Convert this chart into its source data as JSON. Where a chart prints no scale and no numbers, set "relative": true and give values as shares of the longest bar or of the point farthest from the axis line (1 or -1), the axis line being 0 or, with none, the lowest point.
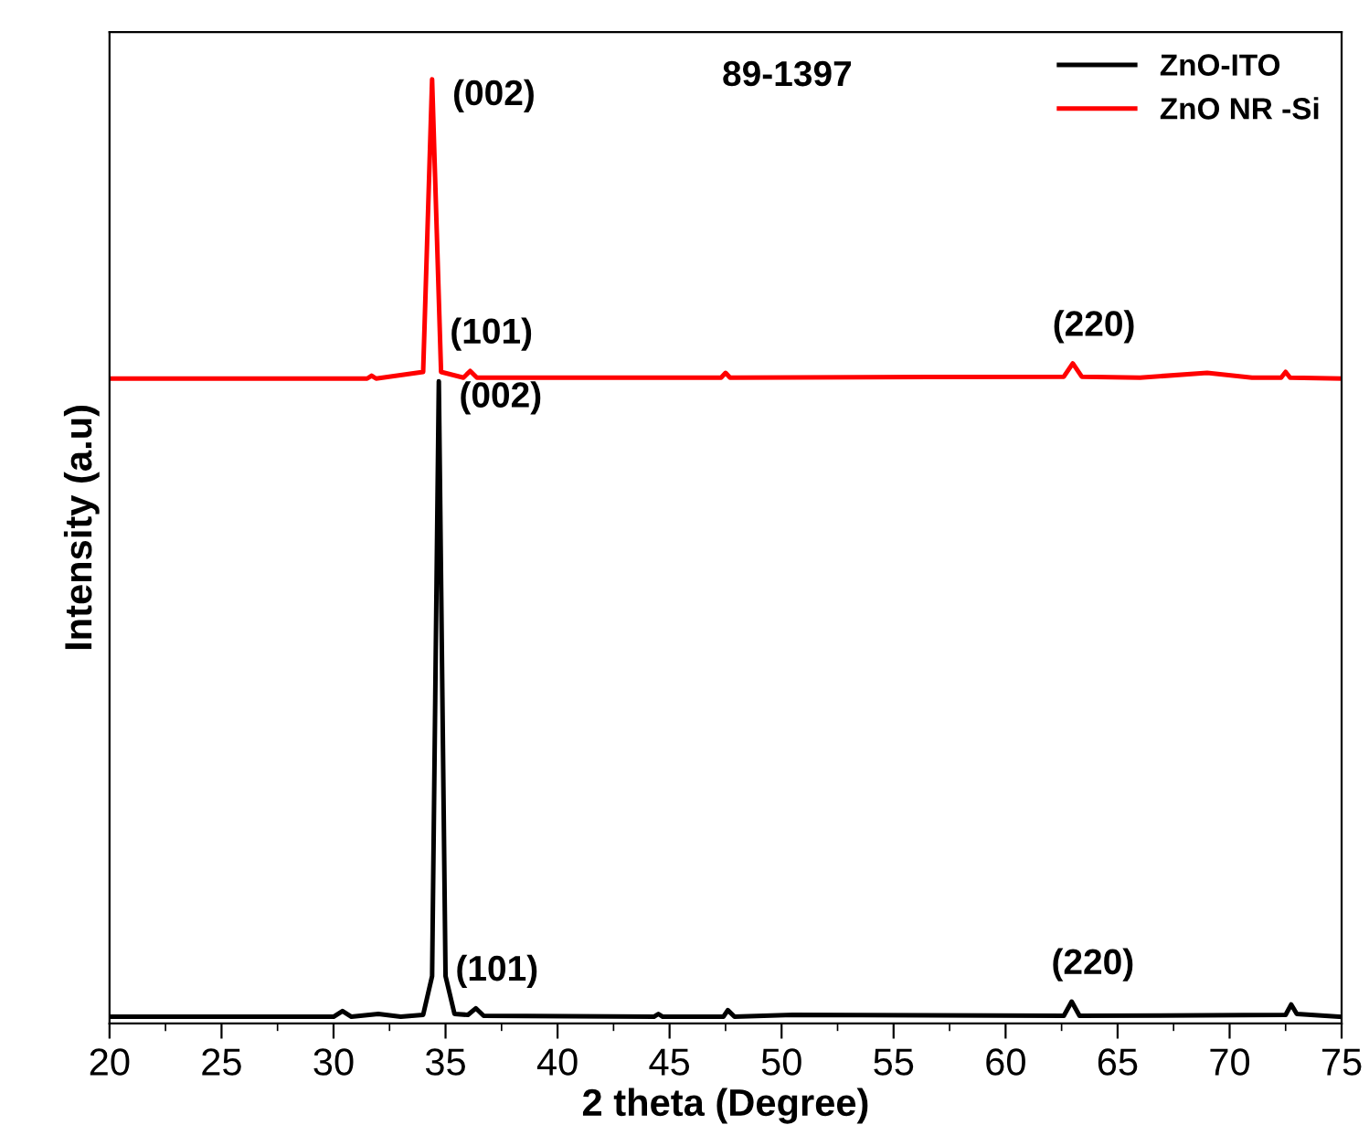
{
  "chart_data": {
    "type": "line",
    "relative": true,
    "xlabel": "2 theta (Degree)",
    "ylabel": "Intensity (a.u)",
    "xlim": [
      20,
      75
    ],
    "xticks": [
      20,
      25,
      30,
      35,
      40,
      45,
      50,
      55,
      60,
      65,
      70,
      75
    ],
    "legend": "top right",
    "grid": false,
    "tick_labels": "x",
    "series": [
      {
        "name": "ZnO-ITO",
        "color": "#000000",
        "x": [
          20,
          30,
          30.4,
          30.8,
          32,
          33,
          34,
          34.4,
          34.7,
          35.0,
          35.4,
          36.0,
          36.35,
          36.7,
          44.3,
          44.5,
          44.7,
          47.4,
          47.6,
          47.9,
          50.5,
          62.6,
          62.95,
          63.3,
          72.5,
          72.75,
          73.0,
          75
        ],
        "values": [
          0.007,
          0.007,
          0.013,
          0.007,
          0.01,
          0.007,
          0.009,
          0.05,
          0.68,
          0.05,
          0.01,
          0.009,
          0.016,
          0.008,
          0.007,
          0.01,
          0.007,
          0.007,
          0.014,
          0.007,
          0.009,
          0.008,
          0.023,
          0.008,
          0.009,
          0.02,
          0.01,
          0.007
        ]
      },
      {
        "name": "ZnO NR -Si",
        "color": "#ff0000",
        "x": [
          20,
          31.5,
          31.7,
          31.9,
          34.0,
          34.4,
          34.8,
          35.8,
          36.1,
          36.4,
          44.5,
          47.3,
          47.5,
          47.7,
          62.6,
          63.0,
          63.4,
          66,
          69,
          71,
          72.3,
          72.5,
          72.7,
          75
        ],
        "values": [
          0.683,
          0.683,
          0.686,
          0.683,
          0.69,
          1.0,
          0.69,
          0.684,
          0.691,
          0.684,
          0.684,
          0.684,
          0.689,
          0.684,
          0.685,
          0.699,
          0.685,
          0.684,
          0.689,
          0.684,
          0.684,
          0.69,
          0.684,
          0.683
        ]
      }
    ],
    "annotations": [
      "89-1397",
      {
        "text": "(002)",
        "x": 34.4,
        "y": 1.0
      },
      {
        "text": "(101)",
        "x": 36.1,
        "y": 0.691
      },
      {
        "text": "(220)",
        "x": 63.0,
        "y": 0.699
      },
      {
        "text": "(002)",
        "x": 34.7,
        "y": 0.68
      },
      {
        "text": "(101)",
        "x": 36.35,
        "y": 0.016
      },
      {
        "text": "(220)",
        "x": 62.95,
        "y": 0.023
      }
    ]
  }
}
